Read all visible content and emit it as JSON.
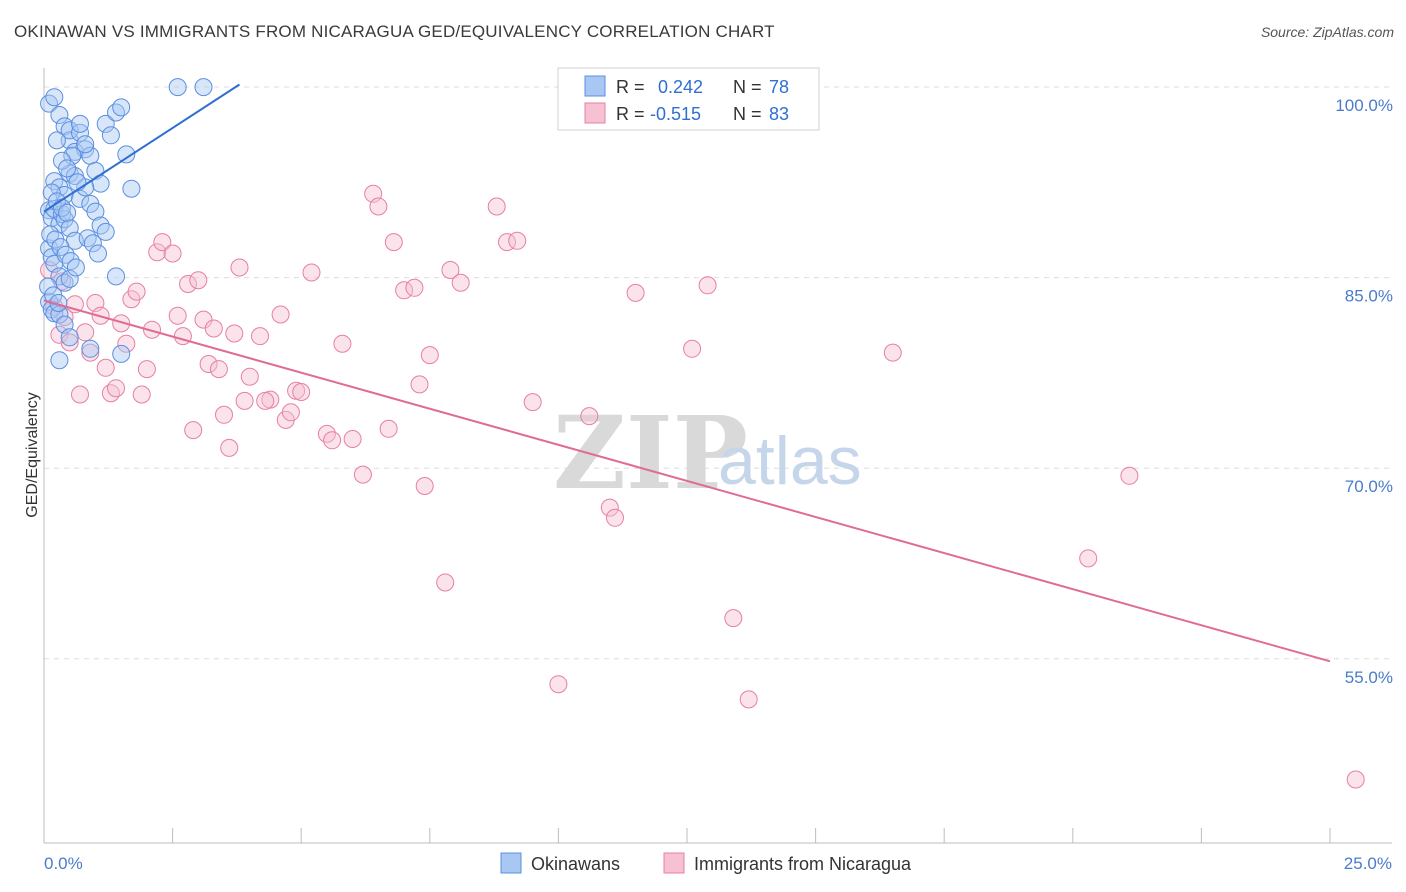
{
  "title": "OKINAWAN VS IMMIGRANTS FROM NICARAGUA GED/EQUIVALENCY CORRELATION CHART",
  "source": "Source: ZipAtlas.com",
  "watermark": {
    "zip": "ZIP",
    "atlas": "atlas"
  },
  "colors": {
    "blue": "#5b8fe0",
    "blue_fill": "#a9c7f3",
    "blue_line": "#2e6fd1",
    "pink": "#e87fa3",
    "pink_fill": "#f5c1d3",
    "pink_line": "#e06b97",
    "grid": "#dddddd",
    "tick_text": "#4a7cc9"
  },
  "legend": {
    "rows": [
      {
        "r_label": "R =",
        "r_value": "0.242",
        "n_label": "N =",
        "n_value": "78"
      },
      {
        "r_label": "R =",
        "r_value": "-0.515",
        "n_label": "N =",
        "n_value": "83"
      }
    ]
  },
  "bottom_legend": [
    "Okinawans",
    "Immigrants from Nicaragua"
  ],
  "chart_data": {
    "type": "scatter",
    "ylabel": "GED/Equivalency",
    "xlabel": "",
    "xlim": [
      0,
      25
    ],
    "ylim": [
      40.5,
      101.5
    ],
    "x_tick_labels": [
      "0.0%",
      "25.0%"
    ],
    "y_tick_labels": [
      "100.0%",
      "85.0%",
      "70.0%",
      "55.0%"
    ],
    "y_gridlines": [
      100,
      85,
      70,
      55
    ],
    "legend_position": "top-center",
    "series": [
      {
        "name": "Okinawans",
        "color": "#5b8fe0",
        "trend": {
          "x": [
            0.0,
            3.8
          ],
          "y": [
            90.2,
            100.2
          ]
        },
        "points": [
          [
            0.1,
            98.7
          ],
          [
            0.2,
            99.2
          ],
          [
            0.3,
            97.8
          ],
          [
            0.4,
            96.9
          ],
          [
            0.5,
            95.8
          ],
          [
            0.5,
            96.6
          ],
          [
            0.6,
            94.9
          ],
          [
            0.7,
            96.4
          ],
          [
            0.8,
            95.1
          ],
          [
            0.9,
            94.6
          ],
          [
            1.0,
            93.4
          ],
          [
            1.1,
            92.4
          ],
          [
            1.2,
            97.1
          ],
          [
            1.3,
            96.2
          ],
          [
            1.4,
            98.0
          ],
          [
            1.6,
            94.7
          ],
          [
            1.7,
            92.0
          ],
          [
            1.5,
            98.4
          ],
          [
            0.2,
            92.6
          ],
          [
            0.3,
            92.1
          ],
          [
            0.4,
            91.5
          ],
          [
            0.5,
            93.2
          ],
          [
            0.6,
            93.0
          ],
          [
            0.7,
            91.2
          ],
          [
            0.8,
            92.1
          ],
          [
            0.9,
            90.8
          ],
          [
            1.0,
            90.2
          ],
          [
            0.1,
            90.3
          ],
          [
            0.15,
            89.7
          ],
          [
            0.2,
            90.4
          ],
          [
            0.3,
            89.2
          ],
          [
            0.35,
            90.0
          ],
          [
            0.4,
            89.6
          ],
          [
            0.5,
            88.9
          ],
          [
            0.6,
            87.9
          ],
          [
            0.1,
            87.3
          ],
          [
            0.15,
            86.6
          ],
          [
            0.2,
            86.1
          ],
          [
            0.3,
            85.1
          ],
          [
            0.4,
            84.6
          ],
          [
            0.5,
            84.9
          ],
          [
            0.1,
            83.1
          ],
          [
            0.15,
            82.5
          ],
          [
            0.2,
            82.2
          ],
          [
            0.3,
            82.1
          ],
          [
            0.4,
            81.3
          ],
          [
            0.5,
            80.3
          ],
          [
            0.3,
            78.5
          ],
          [
            0.9,
            79.4
          ],
          [
            1.5,
            79.0
          ],
          [
            1.4,
            85.1
          ],
          [
            3.1,
            100.0
          ],
          [
            2.6,
            100.0
          ],
          [
            0.7,
            97.1
          ],
          [
            0.8,
            95.5
          ],
          [
            0.25,
            95.8
          ],
          [
            0.55,
            94.6
          ],
          [
            0.35,
            94.2
          ],
          [
            0.45,
            93.6
          ],
          [
            0.65,
            92.5
          ],
          [
            0.15,
            91.7
          ],
          [
            0.25,
            91.0
          ],
          [
            0.35,
            90.5
          ],
          [
            0.45,
            90.1
          ],
          [
            0.12,
            88.4
          ],
          [
            0.22,
            88.0
          ],
          [
            0.32,
            87.4
          ],
          [
            0.42,
            86.8
          ],
          [
            0.52,
            86.3
          ],
          [
            0.62,
            85.8
          ],
          [
            0.08,
            84.3
          ],
          [
            0.18,
            83.6
          ],
          [
            0.28,
            83.0
          ],
          [
            1.1,
            89.1
          ],
          [
            1.2,
            88.6
          ],
          [
            0.85,
            88.1
          ],
          [
            0.95,
            87.7
          ],
          [
            1.05,
            86.9
          ]
        ]
      },
      {
        "name": "Immigrants from Nicaragua",
        "color": "#e87fa3",
        "trend": {
          "x": [
            0.0,
            25.0
          ],
          "y": [
            83.2,
            54.8
          ]
        },
        "points": [
          [
            0.1,
            85.6
          ],
          [
            0.2,
            82.7
          ],
          [
            0.3,
            80.5
          ],
          [
            0.35,
            84.7
          ],
          [
            0.4,
            81.9
          ],
          [
            0.5,
            79.9
          ],
          [
            0.6,
            82.9
          ],
          [
            0.7,
            75.8
          ],
          [
            0.8,
            80.7
          ],
          [
            0.9,
            79.1
          ],
          [
            1.0,
            83.0
          ],
          [
            1.1,
            82.0
          ],
          [
            1.2,
            77.9
          ],
          [
            1.3,
            75.9
          ],
          [
            1.4,
            76.3
          ],
          [
            1.5,
            81.4
          ],
          [
            1.6,
            79.8
          ],
          [
            1.7,
            83.3
          ],
          [
            1.8,
            83.9
          ],
          [
            1.9,
            75.8
          ],
          [
            2.0,
            77.8
          ],
          [
            2.1,
            80.9
          ],
          [
            2.2,
            87.0
          ],
          [
            2.3,
            87.8
          ],
          [
            2.5,
            86.9
          ],
          [
            2.6,
            82.0
          ],
          [
            2.7,
            80.4
          ],
          [
            2.8,
            84.5
          ],
          [
            2.9,
            73.0
          ],
          [
            3.0,
            84.8
          ],
          [
            3.1,
            81.7
          ],
          [
            3.2,
            78.2
          ],
          [
            3.3,
            81.0
          ],
          [
            3.4,
            77.8
          ],
          [
            3.5,
            74.2
          ],
          [
            3.6,
            71.6
          ],
          [
            3.7,
            80.6
          ],
          [
            3.8,
            85.8
          ],
          [
            3.9,
            75.3
          ],
          [
            4.0,
            77.2
          ],
          [
            4.2,
            80.4
          ],
          [
            4.4,
            75.4
          ],
          [
            4.6,
            82.1
          ],
          [
            4.7,
            73.8
          ],
          [
            4.8,
            74.4
          ],
          [
            4.9,
            76.1
          ],
          [
            5.0,
            76.0
          ],
          [
            5.2,
            85.4
          ],
          [
            5.5,
            72.7
          ],
          [
            5.6,
            72.2
          ],
          [
            5.8,
            79.8
          ],
          [
            6.0,
            72.3
          ],
          [
            6.2,
            69.5
          ],
          [
            6.4,
            91.6
          ],
          [
            6.5,
            90.6
          ],
          [
            6.7,
            73.1
          ],
          [
            6.8,
            87.8
          ],
          [
            7.0,
            84.0
          ],
          [
            7.2,
            84.2
          ],
          [
            7.3,
            76.6
          ],
          [
            7.4,
            68.6
          ],
          [
            7.5,
            78.9
          ],
          [
            7.8,
            61.0
          ],
          [
            7.9,
            85.6
          ],
          [
            8.1,
            84.6
          ],
          [
            8.8,
            90.6
          ],
          [
            9.0,
            87.8
          ],
          [
            9.2,
            87.9
          ],
          [
            9.5,
            75.2
          ],
          [
            10.0,
            53.0
          ],
          [
            10.6,
            74.1
          ],
          [
            11.0,
            66.9
          ],
          [
            11.1,
            66.1
          ],
          [
            11.5,
            83.8
          ],
          [
            12.6,
            79.4
          ],
          [
            12.9,
            84.4
          ],
          [
            13.4,
            58.2
          ],
          [
            13.7,
            51.8
          ],
          [
            16.5,
            79.1
          ],
          [
            20.3,
            62.9
          ],
          [
            21.1,
            69.4
          ],
          [
            25.5,
            45.5
          ],
          [
            4.3,
            75.3
          ]
        ]
      }
    ]
  }
}
